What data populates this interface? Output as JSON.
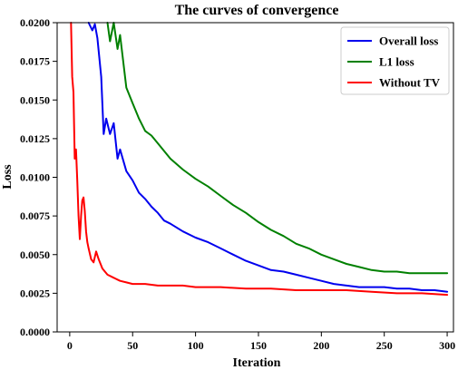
{
  "chart_data": {
    "type": "line",
    "title": "The curves of convergence",
    "xlabel": "Iteration",
    "ylabel": "Loss",
    "xlim": [
      -10,
      305
    ],
    "ylim": [
      0,
      0.02
    ],
    "xticks": [
      0,
      50,
      100,
      150,
      200,
      250,
      300
    ],
    "xtick_labels": [
      "0",
      "50",
      "100",
      "150",
      "200",
      "250",
      "300"
    ],
    "yticks": [
      0,
      0.0025,
      0.005,
      0.0075,
      0.01,
      0.0125,
      0.015,
      0.0175,
      0.02
    ],
    "ytick_labels": [
      "0.0000",
      "0.0025",
      "0.0050",
      "0.0075",
      "0.0100",
      "0.0125",
      "0.0150",
      "0.0175",
      "0.0200"
    ],
    "grid": false,
    "legend_position": "top-right",
    "series": [
      {
        "name": "Overall loss",
        "color": "#0000ee",
        "x": [
          15,
          18,
          20,
          22,
          25,
          27,
          29,
          32,
          35,
          38,
          40,
          45,
          50,
          55,
          60,
          65,
          70,
          75,
          80,
          90,
          100,
          110,
          120,
          130,
          140,
          150,
          160,
          170,
          180,
          190,
          200,
          210,
          220,
          230,
          240,
          250,
          260,
          270,
          280,
          290,
          300
        ],
        "y": [
          0.0202,
          0.0195,
          0.0199,
          0.019,
          0.0165,
          0.0128,
          0.0138,
          0.0128,
          0.0135,
          0.0112,
          0.0118,
          0.0104,
          0.0098,
          0.009,
          0.0086,
          0.0081,
          0.0077,
          0.0072,
          0.007,
          0.0065,
          0.0061,
          0.0058,
          0.0054,
          0.005,
          0.0046,
          0.0043,
          0.004,
          0.0039,
          0.0037,
          0.0035,
          0.0033,
          0.0031,
          0.003,
          0.0029,
          0.0029,
          0.0029,
          0.0028,
          0.0028,
          0.0027,
          0.0027,
          0.0026
        ]
      },
      {
        "name": "L1 loss",
        "color": "#008000",
        "x": [
          30,
          32,
          35,
          38,
          40,
          45,
          50,
          55,
          60,
          65,
          70,
          80,
          90,
          100,
          110,
          120,
          130,
          140,
          150,
          160,
          170,
          180,
          190,
          200,
          210,
          220,
          230,
          240,
          250,
          260,
          270,
          280,
          290,
          300
        ],
        "y": [
          0.0202,
          0.0188,
          0.02,
          0.0183,
          0.0192,
          0.0158,
          0.0148,
          0.0138,
          0.013,
          0.0127,
          0.0122,
          0.0112,
          0.0105,
          0.0099,
          0.0094,
          0.0088,
          0.0082,
          0.0077,
          0.0071,
          0.0066,
          0.0062,
          0.0057,
          0.0054,
          0.005,
          0.0047,
          0.0044,
          0.0042,
          0.004,
          0.0039,
          0.0039,
          0.0038,
          0.0038,
          0.0038,
          0.0038
        ]
      },
      {
        "name": "Without TV",
        "color": "#ff0000",
        "x": [
          1,
          2,
          3,
          4,
          5,
          6,
          7,
          8,
          9,
          10,
          11,
          12,
          13,
          14,
          15,
          17,
          19,
          21,
          23,
          26,
          30,
          35,
          40,
          45,
          50,
          60,
          70,
          80,
          90,
          100,
          120,
          140,
          160,
          180,
          200,
          220,
          240,
          260,
          280,
          300
        ],
        "y": [
          0.0202,
          0.0165,
          0.0155,
          0.0112,
          0.0118,
          0.0098,
          0.0075,
          0.006,
          0.0075,
          0.0085,
          0.0087,
          0.0078,
          0.0065,
          0.0058,
          0.0054,
          0.0047,
          0.0045,
          0.0052,
          0.0047,
          0.0041,
          0.0037,
          0.0035,
          0.0033,
          0.0032,
          0.0031,
          0.0031,
          0.003,
          0.003,
          0.003,
          0.0029,
          0.0029,
          0.0028,
          0.0028,
          0.0027,
          0.0027,
          0.0027,
          0.0026,
          0.0025,
          0.0025,
          0.0024
        ]
      }
    ]
  }
}
